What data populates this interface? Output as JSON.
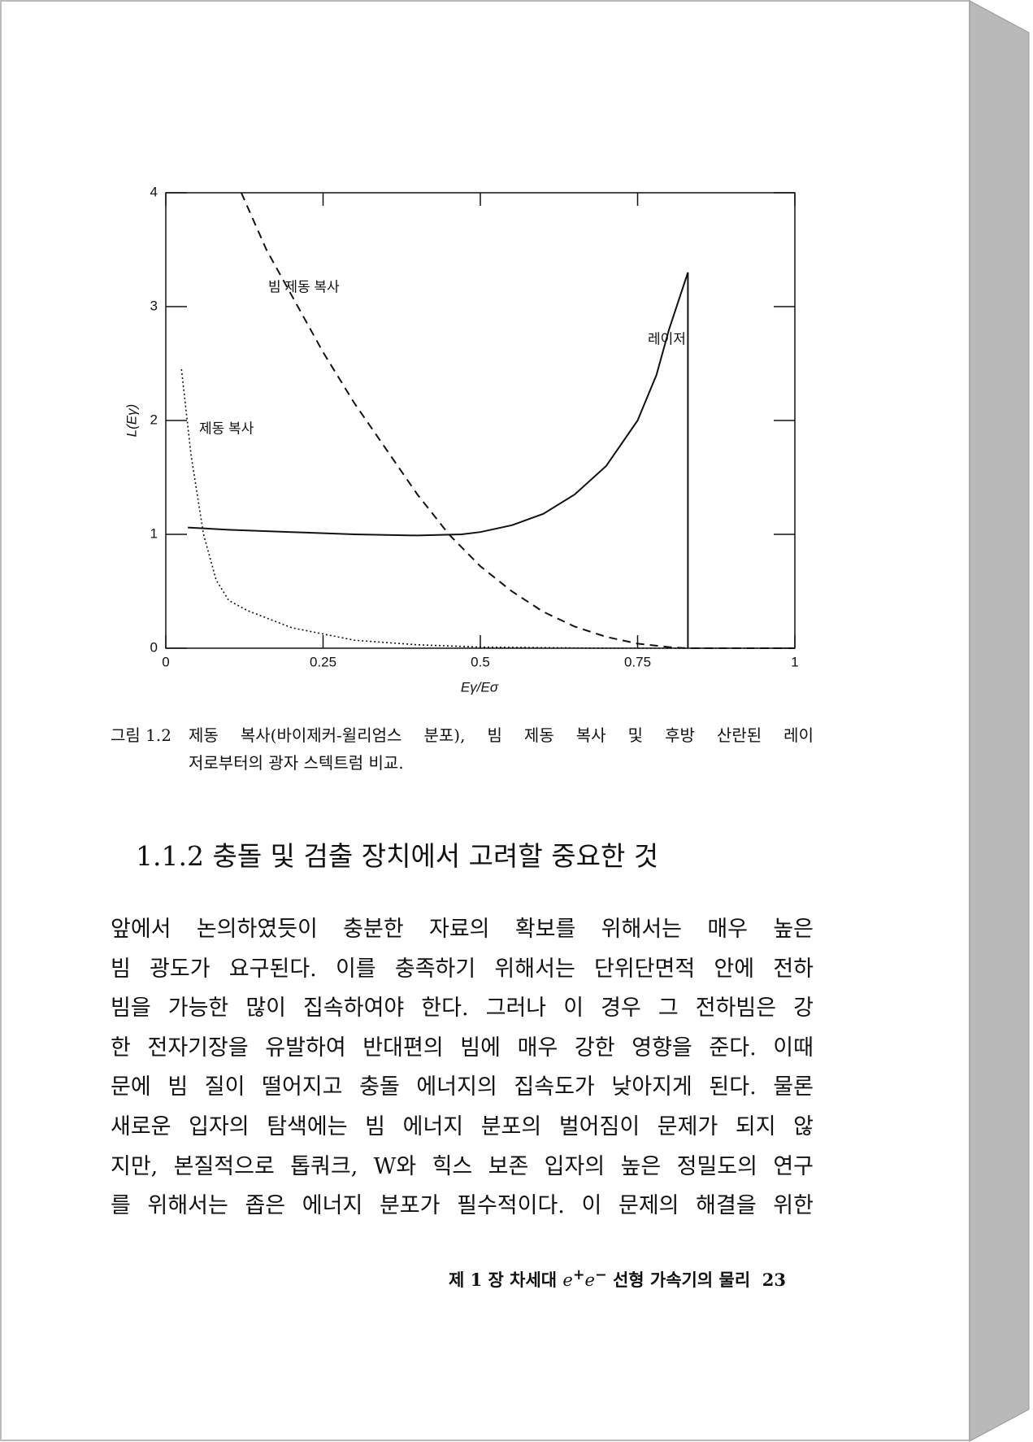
{
  "chart_data": {
    "type": "line",
    "xlabel": "Eγ/Eσ",
    "ylabel": "L(Eγ)",
    "xlim": [
      0,
      1
    ],
    "ylim": [
      0,
      4
    ],
    "xticks": [
      0,
      0.25,
      0.5,
      0.75,
      1
    ],
    "yticks": [
      0,
      1,
      2,
      3,
      4
    ],
    "series": [
      {
        "name": "레이저",
        "color": "#111111",
        "style": "solid",
        "x": [
          0.035,
          0.1,
          0.2,
          0.3,
          0.4,
          0.47,
          0.5,
          0.55,
          0.6,
          0.65,
          0.7,
          0.75,
          0.78,
          0.8,
          0.83,
          0.83
        ],
        "values": [
          1.06,
          1.04,
          1.02,
          1.0,
          0.99,
          1.0,
          1.02,
          1.08,
          1.18,
          1.35,
          1.6,
          2.0,
          2.4,
          2.8,
          3.3,
          0
        ]
      },
      {
        "name": "빔 제동 복사",
        "color": "#111111",
        "style": "dashed",
        "x": [
          0.12,
          0.16,
          0.21,
          0.25,
          0.3,
          0.35,
          0.4,
          0.45,
          0.5,
          0.55,
          0.6,
          0.65,
          0.7,
          0.75,
          0.8,
          0.83,
          1
        ],
        "values": [
          4,
          3.5,
          3.0,
          2.6,
          2.15,
          1.75,
          1.35,
          1.0,
          0.72,
          0.5,
          0.32,
          0.19,
          0.1,
          0.04,
          0.01,
          0,
          0
        ]
      },
      {
        "name": "제동 복사",
        "color": "#111111",
        "style": "dotted",
        "x": [
          0.025,
          0.04,
          0.06,
          0.08,
          0.1,
          0.13,
          0.2,
          0.3,
          0.4,
          0.5,
          0.7,
          1
        ],
        "values": [
          2.45,
          1.7,
          1.0,
          0.6,
          0.42,
          0.33,
          0.18,
          0.07,
          0.03,
          0.01,
          0,
          0
        ]
      }
    ]
  },
  "caption": {
    "label": "그림 1.2",
    "lines": [
      "제동 복사(바이제커-윌리엄스 분포), 빔 제동 복사 및 후방 산란된 레이",
      "저로부터의 광자 스텍트럼 비교."
    ]
  },
  "heading": "1.1.2  충돌 및 검출 장치에서 고려할 중요한 것",
  "body": [
    "앞에서 논의하였듯이 충분한 자료의 확보를 위해서는 매우 높은",
    "빔 광도가 요구된다. 이를 충족하기 위해서는 단위단면적 안에 전하",
    "빔을 가능한 많이 집속하여야 한다. 그러나 이 경우 그 전하빔은 강",
    "한 전자기장을 유발하여 반대편의 빔에 매우 강한 영향을 준다. 이때",
    "문에 빔 질이 떨어지고 충돌 에너지의 집속도가 낮아지게 된다. 물론",
    "새로운 입자의 탐색에는 빔 에너지 분포의 벌어짐이 문제가 되지 않",
    "지만, 본질적으로 톱쿼크, W와 힉스 보존 입자의 높은 정밀도의 연구",
    "를 위해서는 좁은 에너지 분포가 필수적이다. 이 문제의 해결을 위한"
  ],
  "footer": {
    "chapter": "제 1 장  차세대",
    "e1": "e",
    "sup1": "+",
    "e2": "e",
    "sup2": "−",
    "title": "선형 가속기의 물리",
    "page": "23"
  }
}
